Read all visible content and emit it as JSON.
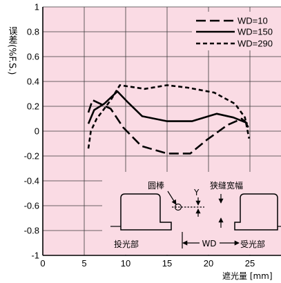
{
  "colors": {
    "plot_background": "#fadbe4",
    "line": "#000000"
  },
  "chart_data": {
    "type": "line",
    "xlabel": "遮光量 [mm]",
    "ylabel": "误差(%F.S.)",
    "xlim": [
      0,
      30
    ],
    "ylim": [
      -1,
      1
    ],
    "xticks": [
      0,
      5,
      10,
      15,
      20,
      25
    ],
    "yticks": [
      1,
      0.8,
      0.6,
      0.4,
      0.2,
      0,
      -0.2,
      -0.4,
      -0.6,
      -0.8,
      -1
    ],
    "grid": true,
    "legend": "top-right",
    "series": [
      {
        "name": "WD=10",
        "x": [
          5.5,
          6.0,
          8.2,
          9.7,
          11.9,
          15.0,
          17.8,
          19.8,
          22.3,
          24.0,
          24.7
        ],
        "y": [
          0.15,
          0.25,
          0.18,
          0.03,
          -0.12,
          -0.18,
          -0.18,
          -0.07,
          0.05,
          0.1,
          0.06
        ]
      },
      {
        "name": "WD=150",
        "x": [
          5.5,
          6.2,
          7.4,
          9.0,
          10.3,
          12.0,
          15.0,
          18.0,
          21.0,
          23.0,
          24.5,
          24.8
        ],
        "y": [
          0.06,
          0.17,
          0.22,
          0.32,
          0.23,
          0.12,
          0.08,
          0.08,
          0.14,
          0.11,
          0.07,
          0.03
        ]
      },
      {
        "name": "WD=290",
        "x": [
          5.5,
          5.8,
          6.5,
          7.3,
          8.2,
          9.3,
          12.3,
          15.0,
          17.5,
          20.7,
          23.2,
          24.4,
          24.9
        ],
        "y": [
          -0.14,
          0.0,
          0.1,
          0.17,
          0.25,
          0.37,
          0.34,
          0.37,
          0.35,
          0.31,
          0.22,
          0.11,
          -0.06
        ]
      }
    ]
  },
  "diagram": {
    "rod_label": "圆棒",
    "y_label": "Y",
    "slit_label": "狭缝宽幅",
    "emitter_label": "投光部",
    "wd_label": "WD",
    "receiver_label": "受光部"
  }
}
